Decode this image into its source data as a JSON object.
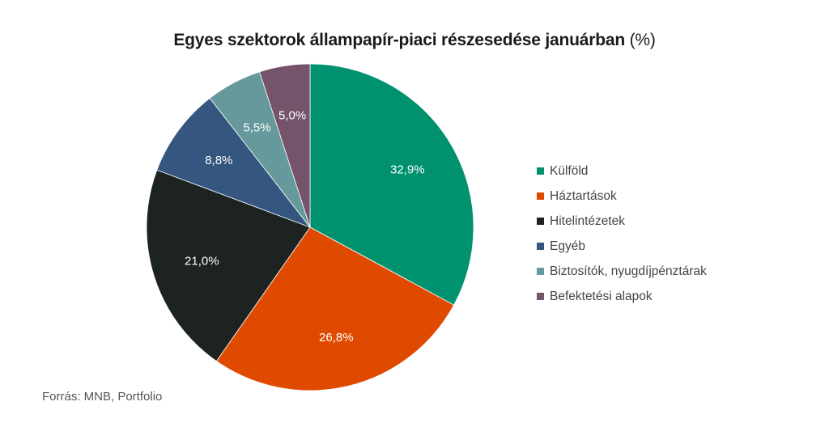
{
  "chart_data": {
    "type": "pie",
    "title": "Egyes szektorok állampapír-piaci részesedése januárban",
    "title_unit": "(%)",
    "slices": [
      {
        "label": "Külföld",
        "value": 32.9,
        "display": "32,9%",
        "color": "#00916e"
      },
      {
        "label": "Háztartások",
        "value": 26.8,
        "display": "26,8%",
        "color": "#e04a00"
      },
      {
        "label": "Hitelintézetek",
        "value": 21.0,
        "display": "21,0%",
        "color": "#1c2320"
      },
      {
        "label": "Egyéb",
        "value": 8.8,
        "display": "8,8%",
        "color": "#34567f"
      },
      {
        "label": "Biztosítók, nyugdíjpénztárak",
        "value": 5.5,
        "display": "5,5%",
        "color": "#66999b"
      },
      {
        "label": "Befektetési alapok",
        "value": 5.0,
        "display": "5,0%",
        "color": "#74536b"
      }
    ],
    "legend_position": "right"
  },
  "source": "Forrás: MNB, Portfolio"
}
